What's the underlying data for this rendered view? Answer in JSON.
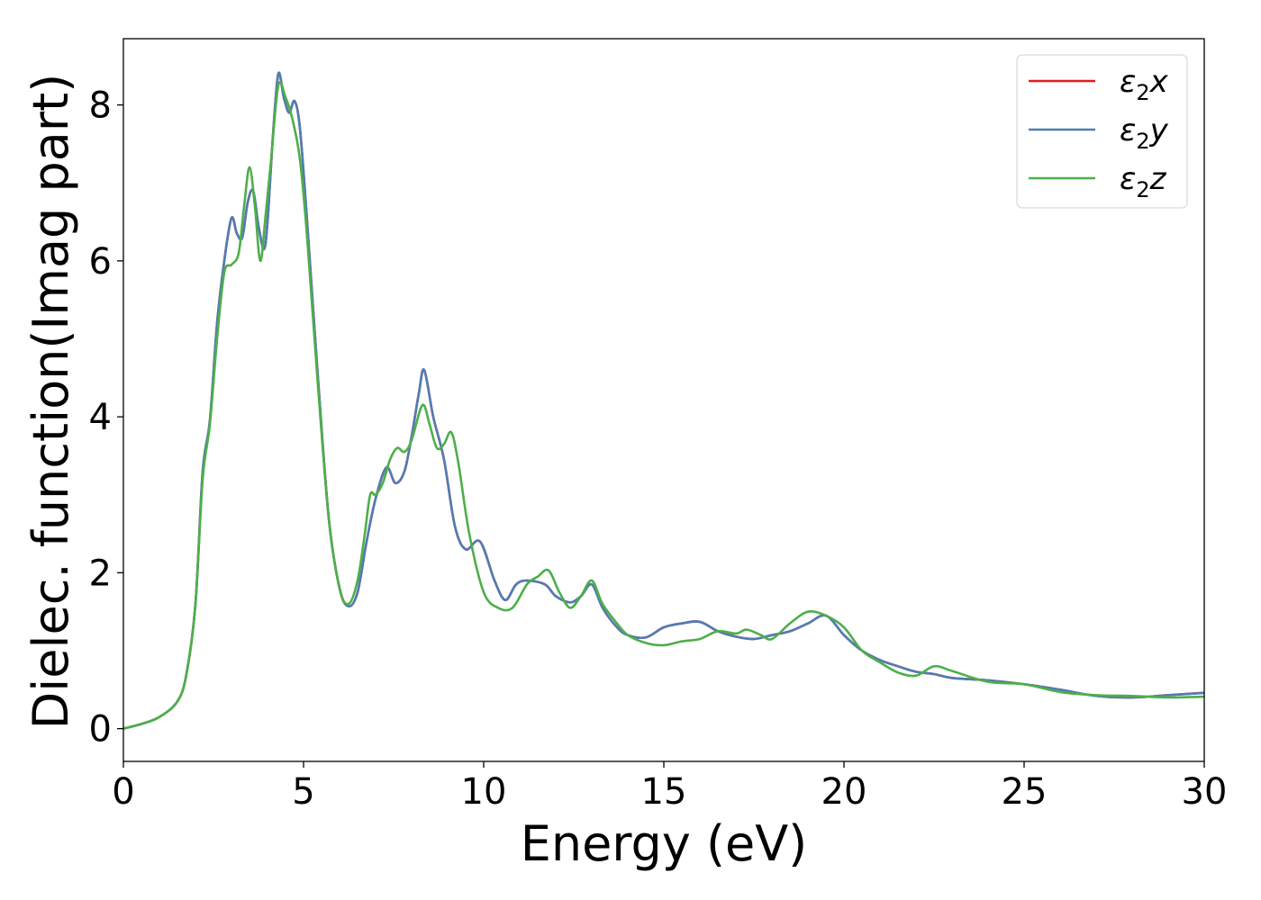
{
  "chart_data": {
    "type": "line",
    "title": "",
    "xlabel": "Energy (eV)",
    "ylabel": "Dielec. function(Imag part)",
    "xlim": [
      0,
      30
    ],
    "ylim": [
      -0.42,
      8.85
    ],
    "xticks": [
      0,
      5,
      10,
      15,
      20,
      25,
      30
    ],
    "yticks": [
      0,
      2,
      4,
      6,
      8
    ],
    "grid": false,
    "legend_position": "top-right",
    "series": [
      {
        "name": "ε₂x",
        "legend_base": "ε",
        "legend_sub": "2",
        "legend_var": "x",
        "color": "#e41a1c",
        "x": [
          0,
          0.5,
          1.0,
          1.5,
          1.75,
          2.0,
          2.2,
          2.4,
          2.6,
          2.8,
          3.0,
          3.15,
          3.3,
          3.45,
          3.6,
          3.75,
          3.9,
          4.0,
          4.15,
          4.3,
          4.45,
          4.6,
          4.75,
          4.9,
          5.1,
          5.4,
          5.7,
          6.0,
          6.25,
          6.5,
          6.75,
          7.0,
          7.3,
          7.55,
          7.8,
          8.0,
          8.2,
          8.35,
          8.6,
          8.9,
          9.2,
          9.5,
          9.9,
          10.3,
          10.6,
          10.9,
          11.2,
          11.7,
          12.0,
          12.4,
          12.7,
          13.0,
          13.3,
          13.7,
          14.0,
          14.5,
          15.0,
          15.5,
          16.0,
          16.5,
          17.0,
          17.5,
          18.0,
          18.5,
          19.0,
          19.5,
          20.0,
          20.5,
          21.0,
          21.5,
          22.0,
          22.5,
          23.0,
          24.0,
          25.0,
          26.0,
          27.0,
          28.0,
          29.0,
          30.0
        ],
        "y": [
          0,
          0.06,
          0.15,
          0.35,
          0.7,
          1.6,
          3.3,
          3.95,
          5.2,
          6.0,
          6.55,
          6.35,
          6.3,
          6.75,
          6.9,
          6.45,
          6.15,
          6.5,
          7.6,
          8.4,
          8.1,
          7.9,
          8.05,
          7.7,
          6.5,
          4.5,
          2.7,
          1.8,
          1.57,
          1.75,
          2.4,
          2.95,
          3.35,
          3.15,
          3.3,
          3.75,
          4.3,
          4.6,
          4.0,
          3.45,
          2.6,
          2.3,
          2.4,
          1.9,
          1.65,
          1.85,
          1.9,
          1.85,
          1.7,
          1.62,
          1.7,
          1.85,
          1.55,
          1.3,
          1.2,
          1.17,
          1.3,
          1.35,
          1.37,
          1.25,
          1.18,
          1.15,
          1.2,
          1.25,
          1.35,
          1.45,
          1.2,
          1.0,
          0.88,
          0.8,
          0.73,
          0.7,
          0.65,
          0.62,
          0.57,
          0.5,
          0.42,
          0.4,
          0.43,
          0.46
        ]
      },
      {
        "name": "ε₂y",
        "legend_base": "ε",
        "legend_sub": "2",
        "legend_var": "y",
        "color": "#4f7db3",
        "x": [
          0,
          0.5,
          1.0,
          1.5,
          1.75,
          2.0,
          2.2,
          2.4,
          2.6,
          2.8,
          3.0,
          3.15,
          3.3,
          3.45,
          3.6,
          3.75,
          3.9,
          4.0,
          4.15,
          4.3,
          4.45,
          4.6,
          4.75,
          4.9,
          5.1,
          5.4,
          5.7,
          6.0,
          6.25,
          6.5,
          6.75,
          7.0,
          7.3,
          7.55,
          7.8,
          8.0,
          8.2,
          8.35,
          8.6,
          8.9,
          9.2,
          9.5,
          9.9,
          10.3,
          10.6,
          10.9,
          11.2,
          11.7,
          12.0,
          12.4,
          12.7,
          13.0,
          13.3,
          13.7,
          14.0,
          14.5,
          15.0,
          15.5,
          16.0,
          16.5,
          17.0,
          17.5,
          18.0,
          18.5,
          19.0,
          19.5,
          20.0,
          20.5,
          21.0,
          21.5,
          22.0,
          22.5,
          23.0,
          24.0,
          25.0,
          26.0,
          27.0,
          28.0,
          29.0,
          30.0
        ],
        "y": [
          0,
          0.06,
          0.15,
          0.35,
          0.7,
          1.6,
          3.3,
          3.95,
          5.2,
          6.0,
          6.55,
          6.35,
          6.3,
          6.75,
          6.9,
          6.45,
          6.15,
          6.5,
          7.6,
          8.4,
          8.1,
          7.9,
          8.05,
          7.7,
          6.5,
          4.5,
          2.7,
          1.8,
          1.57,
          1.75,
          2.4,
          2.95,
          3.35,
          3.15,
          3.3,
          3.75,
          4.3,
          4.6,
          4.0,
          3.45,
          2.6,
          2.3,
          2.4,
          1.9,
          1.65,
          1.85,
          1.9,
          1.85,
          1.7,
          1.62,
          1.7,
          1.85,
          1.55,
          1.3,
          1.2,
          1.17,
          1.3,
          1.35,
          1.37,
          1.25,
          1.18,
          1.15,
          1.2,
          1.25,
          1.35,
          1.45,
          1.2,
          1.0,
          0.88,
          0.8,
          0.73,
          0.7,
          0.65,
          0.62,
          0.57,
          0.5,
          0.42,
          0.4,
          0.43,
          0.46
        ]
      },
      {
        "name": "ε₂z",
        "legend_base": "ε",
        "legend_sub": "2",
        "legend_var": "z",
        "color": "#4daf4a",
        "x": [
          0,
          0.5,
          1.0,
          1.5,
          1.75,
          2.0,
          2.2,
          2.4,
          2.6,
          2.8,
          3.0,
          3.2,
          3.35,
          3.5,
          3.65,
          3.8,
          3.95,
          4.1,
          4.3,
          4.5,
          4.7,
          4.9,
          5.1,
          5.4,
          5.7,
          6.0,
          6.25,
          6.5,
          6.7,
          6.85,
          7.0,
          7.2,
          7.4,
          7.6,
          7.8,
          8.0,
          8.3,
          8.5,
          8.7,
          8.9,
          9.1,
          9.3,
          9.6,
          10.0,
          10.4,
          10.8,
          11.2,
          11.5,
          11.8,
          12.1,
          12.4,
          12.7,
          13.0,
          13.3,
          13.7,
          14.0,
          14.5,
          15.0,
          15.5,
          16.0,
          16.5,
          17.0,
          17.3,
          17.7,
          18.0,
          18.5,
          19.0,
          19.5,
          20.0,
          20.5,
          21.0,
          21.5,
          22.0,
          22.5,
          23.0,
          24.0,
          25.0,
          26.0,
          27.0,
          28.0,
          29.0,
          30.0
        ],
        "y": [
          0,
          0.06,
          0.15,
          0.35,
          0.7,
          1.6,
          3.2,
          3.9,
          5.0,
          5.85,
          5.95,
          6.1,
          6.7,
          7.2,
          6.7,
          6.0,
          6.6,
          7.3,
          8.25,
          8.1,
          7.8,
          7.3,
          6.3,
          4.4,
          2.7,
          1.8,
          1.6,
          1.9,
          2.5,
          3.0,
          3.0,
          3.15,
          3.45,
          3.6,
          3.55,
          3.7,
          4.15,
          3.9,
          3.6,
          3.65,
          3.8,
          3.4,
          2.5,
          1.75,
          1.55,
          1.55,
          1.85,
          1.95,
          2.03,
          1.75,
          1.55,
          1.7,
          1.9,
          1.6,
          1.35,
          1.2,
          1.1,
          1.07,
          1.12,
          1.15,
          1.25,
          1.22,
          1.27,
          1.2,
          1.15,
          1.35,
          1.5,
          1.45,
          1.3,
          1.0,
          0.85,
          0.72,
          0.68,
          0.8,
          0.74,
          0.6,
          0.57,
          0.47,
          0.43,
          0.42,
          0.4,
          0.41
        ]
      }
    ]
  }
}
